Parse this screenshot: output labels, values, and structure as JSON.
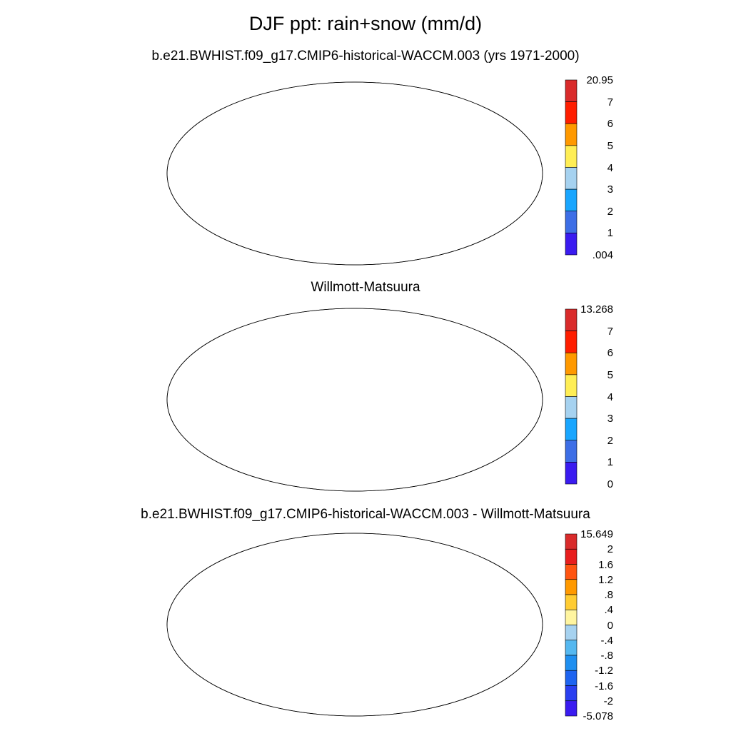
{
  "title": "DJF ppt: rain+snow (mm/d)",
  "panels": [
    {
      "id": "model",
      "title": "b.e21.BWHIST.f09_g17.CMIP6-historical-WACCM.003 (yrs 1971-2000)",
      "colorbar": {
        "labels": [
          "20.95",
          "7",
          "6",
          "5",
          "4",
          "3",
          "2",
          "1",
          ".004"
        ],
        "colors": [
          "#d92b2b",
          "#ff1e00",
          "#ff9900",
          "#ffee55",
          "#a6d2f0",
          "#19a6ff",
          "#3d6ee6",
          "#3a1bf0"
        ]
      }
    },
    {
      "id": "obs",
      "title": "Willmott-Matsuura",
      "colorbar": {
        "labels": [
          "13.268",
          "7",
          "6",
          "5",
          "4",
          "3",
          "2",
          "1",
          "0"
        ],
        "colors": [
          "#d92b2b",
          "#ff1e00",
          "#ff9900",
          "#ffee55",
          "#a6d2f0",
          "#19a6ff",
          "#3d6ee6",
          "#3a1bf0"
        ]
      }
    },
    {
      "id": "diff",
      "title": "b.e21.BWHIST.f09_g17.CMIP6-historical-WACCM.003 - Willmott-Matsuura",
      "colorbar": {
        "labels": [
          "15.649",
          "2",
          "1.6",
          "1.2",
          ".8",
          ".4",
          "0",
          "-.4",
          "-.8",
          "-1.2",
          "-1.6",
          "-2",
          "-5.078"
        ],
        "colors": [
          "#d92b2b",
          "#e81e1e",
          "#ff5511",
          "#ff9900",
          "#ffcc33",
          "#fff5a0",
          "#a6d2f0",
          "#55b8f0",
          "#1f8ff0",
          "#1e64f0",
          "#2a3ff0",
          "#3a1bf0"
        ]
      }
    }
  ]
}
